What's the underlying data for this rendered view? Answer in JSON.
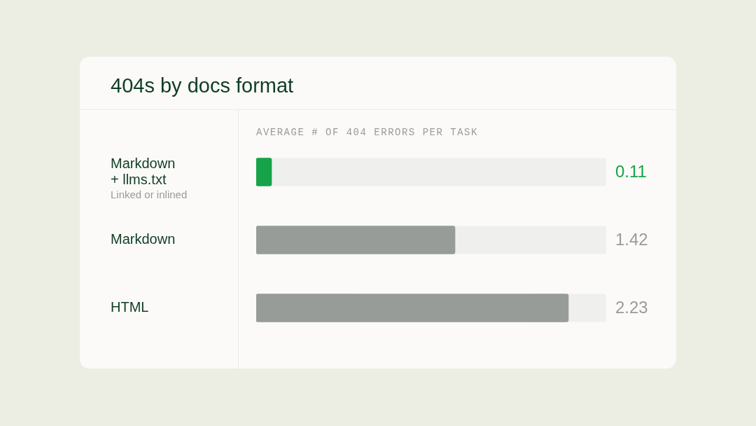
{
  "chart_data": {
    "type": "bar",
    "orientation": "horizontal",
    "title": "404s by docs format",
    "subtitle": "AVERAGE # OF 404 ERRORS PER TASK",
    "categories": [
      "Markdown + llms.txt",
      "Markdown",
      "HTML"
    ],
    "values": [
      0.11,
      1.42,
      2.23
    ],
    "colors": [
      "#16a34a",
      "#979c99",
      "#979c99"
    ],
    "xlim": [
      0,
      2.5
    ],
    "data_labels": true,
    "tick_labels": "y",
    "annotations": [
      "Linked or inlined"
    ]
  }
}
